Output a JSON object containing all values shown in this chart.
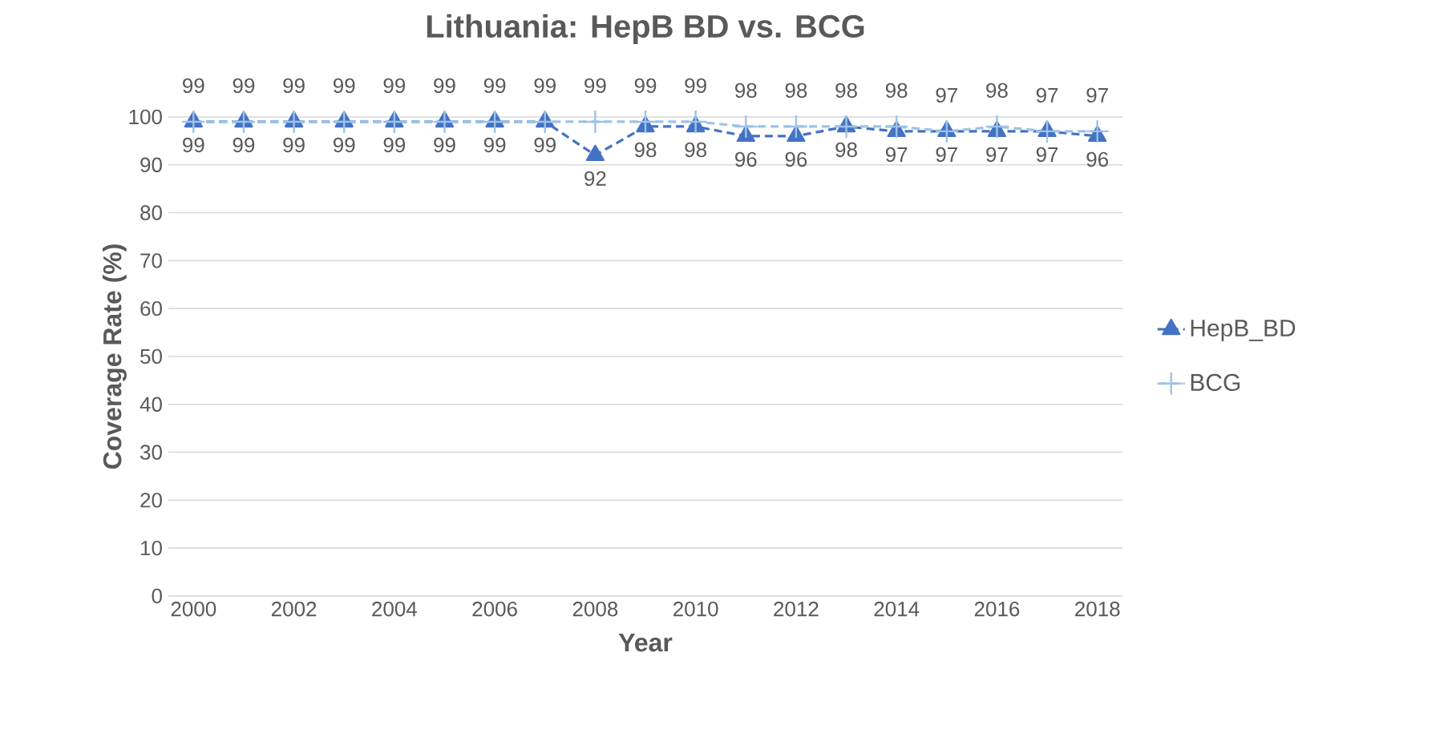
{
  "chart_data": {
    "type": "line",
    "title": "Lithuania: HepB BD vs. BCG",
    "xlabel": "Year",
    "ylabel": "Coverage Rate (%)",
    "x": [
      2000,
      2001,
      2002,
      2003,
      2004,
      2005,
      2006,
      2007,
      2008,
      2009,
      2010,
      2011,
      2012,
      2013,
      2014,
      2015,
      2016,
      2017,
      2018
    ],
    "series": [
      {
        "name": "HepB_BD",
        "color": "#4472c4",
        "marker": "triangle",
        "line_style": "dashed",
        "values": [
          99,
          99,
          99,
          99,
          99,
          99,
          99,
          99,
          92,
          98,
          98,
          96,
          96,
          98,
          97,
          97,
          97,
          97,
          96
        ]
      },
      {
        "name": "BCG",
        "color": "#9dc3e6",
        "marker": "cross",
        "line_style": "dashed",
        "values": [
          99,
          99,
          99,
          99,
          99,
          99,
          99,
          99,
          99,
          99,
          99,
          98,
          98,
          98,
          98,
          97,
          98,
          97,
          97
        ]
      }
    ],
    "xlim": [
      1999.5,
      2018.5
    ],
    "xticks": [
      2000,
      2002,
      2004,
      2006,
      2008,
      2010,
      2012,
      2014,
      2016,
      2018
    ],
    "ylim": [
      0,
      100
    ],
    "yticks": [
      0,
      10,
      20,
      30,
      40,
      50,
      60,
      70,
      80,
      90,
      100
    ],
    "grid": "y",
    "legend": "right",
    "data_labels": true
  }
}
